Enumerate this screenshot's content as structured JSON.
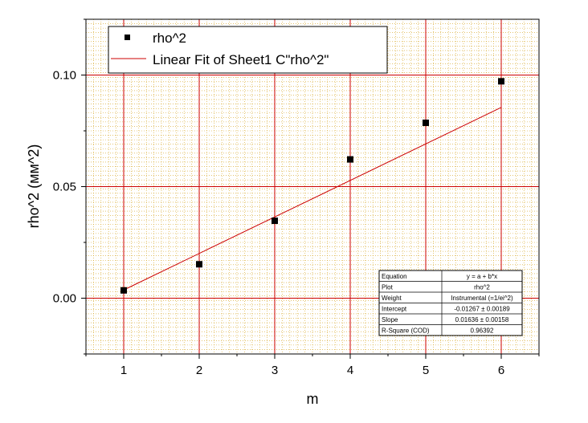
{
  "chart_data": {
    "type": "scatter",
    "xlabel": "m",
    "ylabel": "rho^2 (мм^2)",
    "xlim": [
      0.5,
      6.5
    ],
    "ylim": [
      -0.025,
      0.125
    ],
    "xticks": [
      "1",
      "2",
      "3",
      "4",
      "5",
      "6"
    ],
    "yticks": [
      "0.00",
      "0.05",
      "0.10"
    ],
    "grid": true,
    "legend_position": "top-left",
    "series": [
      {
        "name": "rho^2",
        "kind": "scatter",
        "x": [
          1,
          2,
          3,
          4,
          5,
          6
        ],
        "y": [
          0.0035,
          0.0152,
          0.0347,
          0.0622,
          0.0786,
          0.0972
        ],
        "color": "#000000"
      },
      {
        "name": "Linear Fit of Sheet1 C\"rho^2\"",
        "kind": "line",
        "color": "#cc0000",
        "intercept": -0.01267,
        "slope": 0.01636,
        "x_range": [
          1,
          6
        ]
      }
    ],
    "stats_table": {
      "rows": [
        [
          "Equation",
          "y = a + b*x"
        ],
        [
          "Plot",
          "rho^2"
        ],
        [
          "Weight",
          "Instrumental (=1/ei^2)"
        ],
        [
          "Intercept",
          "-0.01267 ± 0.00189"
        ],
        [
          "Slope",
          "0.01636 ± 0.00158"
        ],
        [
          "R-Square (COD)",
          "0.96392"
        ]
      ]
    },
    "colors": {
      "major_grid": "#cc0000",
      "minor_grid": "#d4a017",
      "fit_line": "#cc0000",
      "markers": "#000000"
    }
  }
}
